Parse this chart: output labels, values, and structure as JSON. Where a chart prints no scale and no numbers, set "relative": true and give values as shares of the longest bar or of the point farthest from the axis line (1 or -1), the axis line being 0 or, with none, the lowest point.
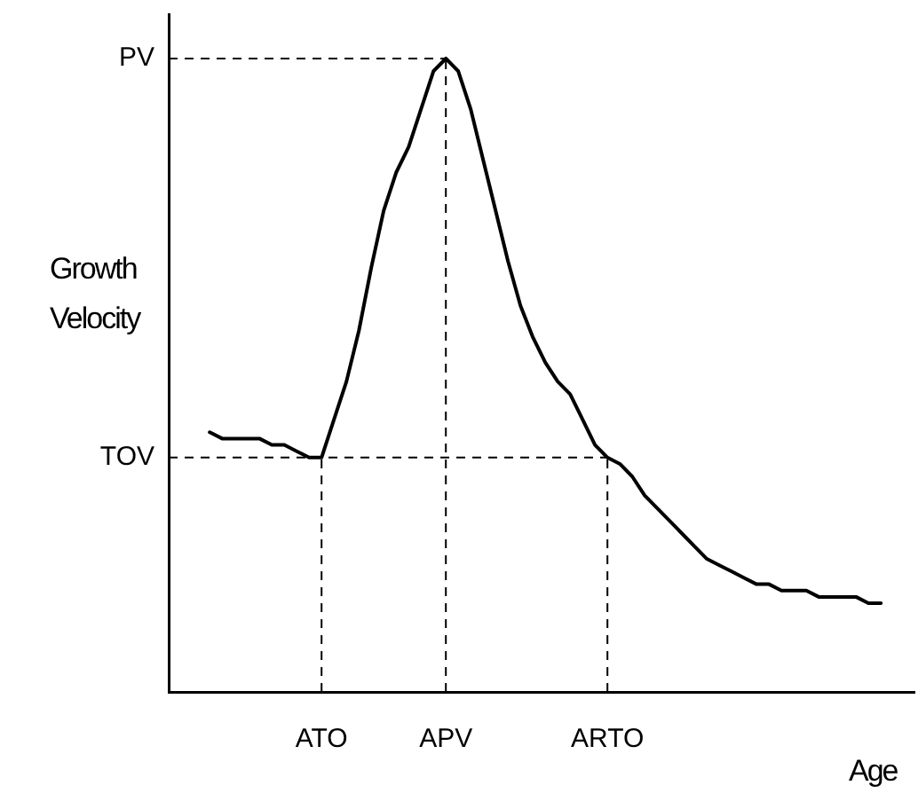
{
  "chart_data": {
    "type": "line",
    "relative": true,
    "xlabel": "Age",
    "ylabel": "Growth Velocity",
    "categories": [
      null,
      null,
      null,
      null,
      null,
      null,
      null,
      null,
      null,
      "ATO",
      null,
      null,
      null,
      null,
      null,
      null,
      null,
      null,
      null,
      "APV",
      null,
      null,
      null,
      null,
      null,
      null,
      null,
      null,
      null,
      null,
      null,
      null,
      "ARTO",
      null,
      null,
      null,
      null,
      null,
      null,
      null,
      null,
      null,
      null,
      null,
      null,
      null,
      null,
      null,
      null,
      null,
      null,
      null,
      null,
      null,
      null
    ],
    "series": [
      {
        "color": "#000000",
        "values": [
          0.41,
          0.4,
          0.4,
          0.4,
          0.4,
          0.39,
          0.39,
          0.38,
          0.37,
          0.37,
          0.43,
          0.49,
          0.57,
          0.67,
          0.76,
          0.82,
          0.86,
          0.92,
          0.98,
          1,
          0.98,
          0.92,
          0.84,
          0.76,
          0.68,
          0.61,
          0.56,
          0.52,
          0.49,
          0.47,
          0.43,
          0.39,
          0.37,
          0.36,
          0.34,
          0.31,
          0.29,
          0.27,
          0.25,
          0.23,
          0.21,
          0.2,
          0.19,
          0.18,
          0.17,
          0.17,
          0.16,
          0.16,
          0.16,
          0.15,
          0.15,
          0.15,
          0.15,
          0.14,
          0.14
        ]
      }
    ],
    "ref_lines": [
      {
        "axis": "y",
        "value": 1,
        "label": "PV",
        "line_style": "dashed"
      },
      {
        "axis": "y",
        "value": 0.37,
        "label": "TOV",
        "line_style": "dashed"
      },
      {
        "axis": "x",
        "value": "ATO",
        "line_style": "dashed"
      },
      {
        "axis": "x",
        "value": "APV",
        "line_style": "dashed"
      },
      {
        "axis": "x",
        "value": "ARTO",
        "line_style": "dashed"
      }
    ],
    "grid": false,
    "legend": false,
    "marker": "none",
    "line_style": "solid"
  }
}
